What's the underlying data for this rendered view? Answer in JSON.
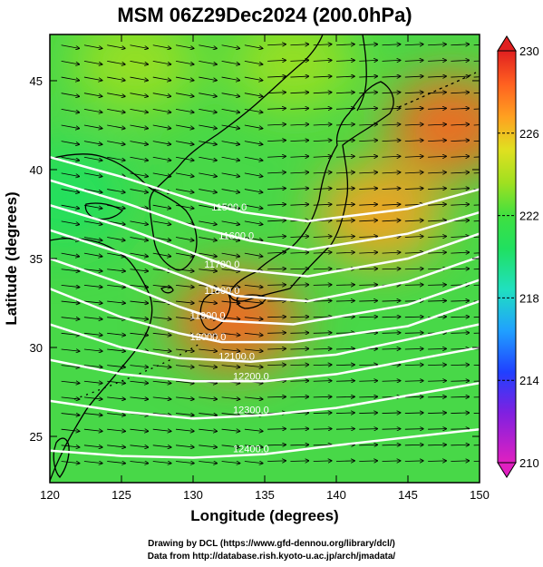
{
  "chart_data": {
    "type": "heatmap",
    "title": "MSM 06Z29Dec2024 (200.0hPa)",
    "xlabel": "Longitude (degrees)",
    "ylabel": "Latitude  (degrees)",
    "xlim": [
      120,
      150
    ],
    "ylim": [
      22.4,
      47.6
    ],
    "xticks": [
      120,
      125,
      130,
      135,
      140,
      145,
      150
    ],
    "yticks": [
      25,
      30,
      35,
      40,
      45
    ],
    "colorbar": {
      "min": 210,
      "max": 230,
      "ticks": [
        210,
        214,
        218,
        222,
        226,
        230
      ],
      "colors": [
        "#e020c0",
        "#8020e0",
        "#2040ff",
        "#20a0ff",
        "#20e0c0",
        "#20e060",
        "#40e040",
        "#a0e020",
        "#e0e020",
        "#ffa020",
        "#ff6020",
        "#e02020"
      ]
    },
    "field_centers": [
      {
        "lon": 121,
        "lat": 38.5,
        "value": 218.5
      },
      {
        "lon": 133,
        "lat": 31.5,
        "value": 228.5
      },
      {
        "lon": 148,
        "lat": 42.5,
        "value": 228.5
      },
      {
        "lon": 143,
        "lat": 37.5,
        "value": 227
      },
      {
        "lon": 126,
        "lat": 46,
        "value": 222
      },
      {
        "lon": 137,
        "lat": 46,
        "value": 223.5
      }
    ],
    "contours": [
      {
        "label": "11500.0",
        "points": [
          [
            120,
            40.7
          ],
          [
            125,
            39.6
          ],
          [
            130,
            38.3
          ],
          [
            133.5,
            37.6
          ],
          [
            138,
            37.1
          ],
          [
            145,
            37.8
          ],
          [
            150,
            38.9
          ]
        ]
      },
      {
        "label": "11600.0",
        "points": [
          [
            120,
            39.4
          ],
          [
            125,
            38.2
          ],
          [
            130,
            36.8
          ],
          [
            134,
            36.0
          ],
          [
            138,
            35.5
          ],
          [
            145,
            36.4
          ],
          [
            150,
            37.6
          ]
        ]
      },
      {
        "label": "11700.0",
        "points": [
          [
            120,
            38.0
          ],
          [
            125,
            36.8
          ],
          [
            130,
            35.3
          ],
          [
            133,
            34.4
          ],
          [
            138,
            34.0
          ],
          [
            145,
            35.0
          ],
          [
            150,
            36.4
          ]
        ]
      },
      {
        "label": "11800.0",
        "points": [
          [
            120,
            36.6
          ],
          [
            125,
            35.3
          ],
          [
            130,
            33.8
          ],
          [
            133,
            32.9
          ],
          [
            138,
            32.6
          ],
          [
            145,
            33.7
          ],
          [
            150,
            35.1
          ]
        ]
      },
      {
        "label": "11900.0",
        "points": [
          [
            120,
            35.0
          ],
          [
            125,
            33.6
          ],
          [
            129,
            32.3
          ],
          [
            132,
            31.5
          ],
          [
            137,
            31.3
          ],
          [
            145,
            32.4
          ],
          [
            150,
            33.8
          ]
        ]
      },
      {
        "label": "12000.0",
        "points": [
          [
            120,
            33.3
          ],
          [
            125,
            31.7
          ],
          [
            129,
            30.8
          ],
          [
            132,
            30.3
          ],
          [
            137,
            30.3
          ],
          [
            145,
            31.2
          ],
          [
            150,
            32.6
          ]
        ]
      },
      {
        "label": "12100.0",
        "points": [
          [
            120,
            31.3
          ],
          [
            125,
            30.0
          ],
          [
            129,
            29.4
          ],
          [
            134,
            29.2
          ],
          [
            140,
            29.6
          ],
          [
            150,
            31.3
          ]
        ]
      },
      {
        "label": "12200.0",
        "points": [
          [
            120,
            29.3
          ],
          [
            125,
            28.5
          ],
          [
            130,
            28.1
          ],
          [
            135,
            28.1
          ],
          [
            140,
            28.5
          ],
          [
            150,
            30.0
          ]
        ]
      },
      {
        "label": "12300.0",
        "points": [
          [
            120,
            27.0
          ],
          [
            125,
            26.4
          ],
          [
            130,
            26.0
          ],
          [
            135,
            26.2
          ],
          [
            140,
            26.6
          ],
          [
            150,
            28.0
          ]
        ]
      },
      {
        "label": "12400.0",
        "points": [
          [
            120,
            24.2
          ],
          [
            125,
            23.9
          ],
          [
            130,
            23.8
          ],
          [
            135,
            24.0
          ],
          [
            140,
            24.5
          ],
          [
            150,
            25.4
          ]
        ]
      }
    ]
  },
  "credits": {
    "line1": "Drawing by DCL (https://www.gfd-dennou.org/library/dcl/)",
    "line2": "Data from http://database.rish.kyoto-u.ac.jp/arch/jmadata/"
  }
}
